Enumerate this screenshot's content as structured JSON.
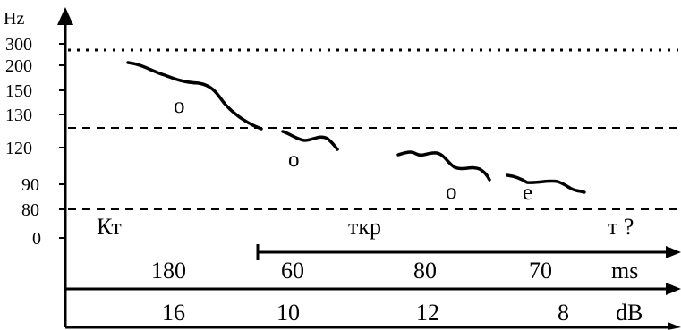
{
  "y_axis": {
    "unit": "Hz",
    "ticks": [
      "300",
      "200",
      "150",
      "130",
      "120",
      "90",
      "80",
      "0"
    ]
  },
  "syllables": [
    {
      "vowel": "о",
      "contour": "falling"
    },
    {
      "vowel": "о",
      "contour": "falling"
    },
    {
      "vowel": "о",
      "contour": "falling"
    },
    {
      "vowel": "е",
      "contour": "falling"
    }
  ],
  "segments": {
    "left": "Кт",
    "middle": "ткр",
    "right": "т ?"
  },
  "duration_row": {
    "unit": "ms",
    "values": [
      "180",
      "60",
      "80",
      "70"
    ]
  },
  "intensity_row": {
    "unit": "dB",
    "values": [
      "16",
      "10",
      "12",
      "8"
    ]
  },
  "colors": {
    "ink": "#000000",
    "background": "#ffffff"
  }
}
